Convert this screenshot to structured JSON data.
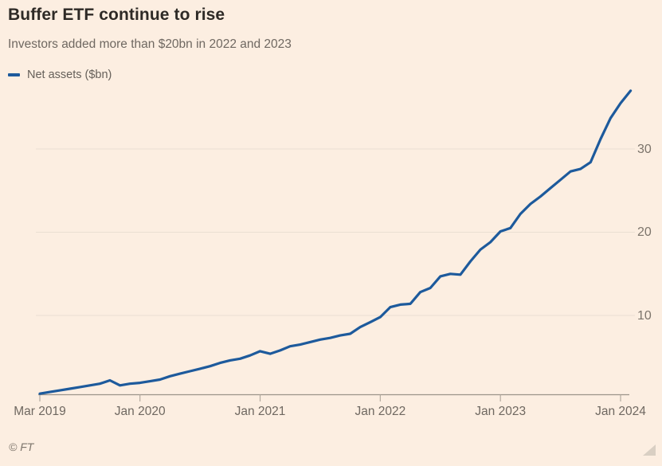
{
  "header": {
    "title": "Buffer ETF continue to rise",
    "subtitle": "Investors added more than $20bn in 2022 and 2023"
  },
  "legend": {
    "label": "Net assets ($bn)",
    "swatch_color": "#1d5a9c"
  },
  "footer": {
    "credit": "© FT"
  },
  "colors": {
    "background": "#fceee1",
    "line": "#1d5a9c",
    "gridline": "#eadfd2",
    "axis_line": "#9c948a",
    "tick": "#b3aa9f",
    "title_text": "#2e2a26",
    "muted_text": "#6f6861",
    "axis_text": "#7c746b"
  },
  "chart_data": {
    "type": "line",
    "title": "Buffer ETF continue to rise",
    "subtitle": "Investors added more than $20bn in 2022 and 2023",
    "series_name": "Net assets ($bn)",
    "x": [
      "Mar 2019",
      "Apr 2019",
      "May 2019",
      "Jun 2019",
      "Jul 2019",
      "Aug 2019",
      "Sep 2019",
      "Oct 2019",
      "Nov 2019",
      "Dec 2019",
      "Jan 2020",
      "Feb 2020",
      "Mar 2020",
      "Apr 2020",
      "May 2020",
      "Jun 2020",
      "Jul 2020",
      "Aug 2020",
      "Sep 2020",
      "Oct 2020",
      "Nov 2020",
      "Dec 2020",
      "Jan 2021",
      "Feb 2021",
      "Mar 2021",
      "Apr 2021",
      "May 2021",
      "Jun 2021",
      "Jul 2021",
      "Aug 2021",
      "Sep 2021",
      "Oct 2021",
      "Nov 2021",
      "Dec 2021",
      "Jan 2022",
      "Feb 2022",
      "Mar 2022",
      "Apr 2022",
      "May 2022",
      "Jun 2022",
      "Jul 2022",
      "Aug 2022",
      "Sep 2022",
      "Oct 2022",
      "Nov 2022",
      "Dec 2022",
      "Jan 2023",
      "Feb 2023",
      "Mar 2023",
      "Apr 2023",
      "May 2023",
      "Jun 2023",
      "Jul 2023",
      "Aug 2023",
      "Sep 2023",
      "Oct 2023",
      "Nov 2023",
      "Dec 2023",
      "Jan 2024",
      "Feb 2024"
    ],
    "values": [
      0.6,
      0.8,
      1.0,
      1.2,
      1.4,
      1.6,
      1.8,
      2.2,
      1.6,
      1.8,
      1.9,
      2.1,
      2.3,
      2.7,
      3.0,
      3.3,
      3.6,
      3.9,
      4.3,
      4.6,
      4.8,
      5.2,
      5.7,
      5.4,
      5.8,
      6.3,
      6.5,
      6.8,
      7.1,
      7.3,
      7.6,
      7.8,
      8.6,
      9.2,
      9.8,
      11.0,
      11.3,
      11.4,
      12.8,
      13.3,
      14.7,
      15.0,
      14.9,
      16.5,
      17.9,
      18.8,
      20.1,
      20.5,
      22.2,
      23.4,
      24.3,
      25.3,
      26.3,
      27.3,
      27.6,
      28.4,
      31.2,
      33.7,
      35.5,
      37.0
    ],
    "x_tick_labels": [
      "Mar 2019",
      "Jan 2020",
      "Jan 2021",
      "Jan 2022",
      "Jan 2023",
      "Jan 2024"
    ],
    "x_tick_indices": [
      0,
      10,
      22,
      34,
      46,
      58
    ],
    "y_ticks": [
      10,
      20,
      30
    ],
    "ylim": [
      0,
      38
    ],
    "grid": "horizontal",
    "y_axis_side": "right",
    "legend_position": "top-left",
    "line_color": "#1d5a9c"
  }
}
